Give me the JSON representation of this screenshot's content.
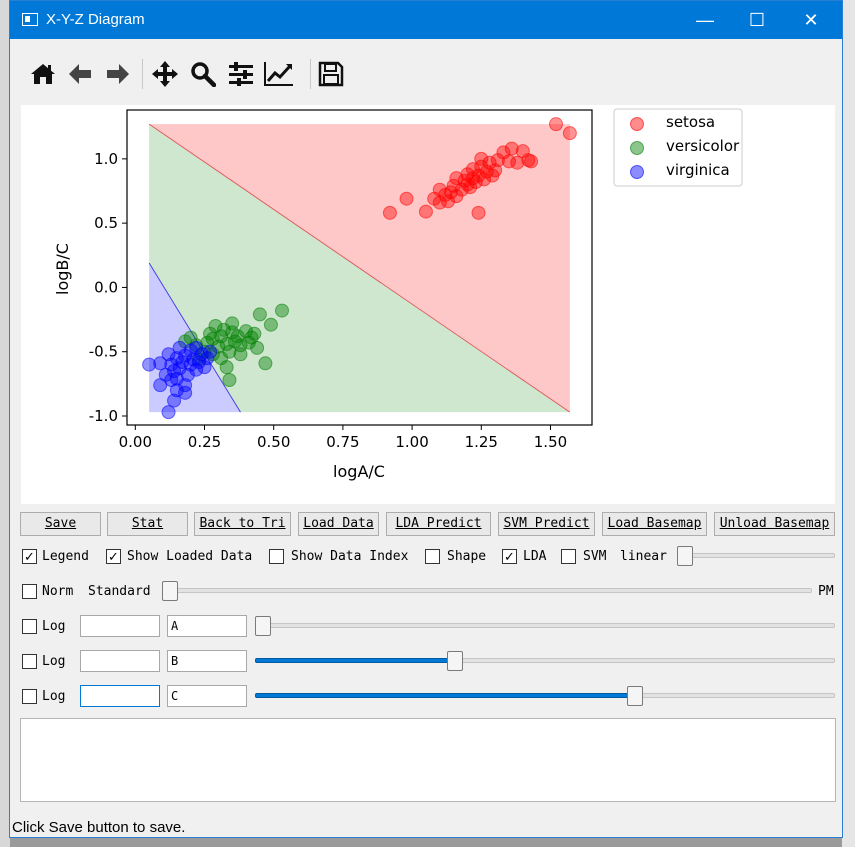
{
  "window": {
    "title": "X-Y-Z Diagram",
    "controls": [
      "—",
      "☐",
      "✕"
    ]
  },
  "toolbar": {
    "tools": [
      "home-icon",
      "back-arrow-icon",
      "forward-arrow-icon",
      "pan-icon",
      "zoom-icon",
      "configure-subplots-icon",
      "edit-axis-icon",
      "save-figure-icon"
    ]
  },
  "chart_data": {
    "type": "scatter",
    "xlabel": "logA/C",
    "ylabel": "logB/C",
    "xlim": [
      -0.03,
      1.65
    ],
    "ylim": [
      -1.07,
      1.38
    ],
    "xticks": [
      "0.00",
      "0.25",
      "0.50",
      "0.75",
      "1.00",
      "1.25",
      "1.50"
    ],
    "xtick_values": [
      0,
      0.25,
      0.5,
      0.75,
      1.0,
      1.25,
      1.5
    ],
    "yticks": [
      "-1.0",
      "-0.5",
      "0.0",
      "0.5",
      "1.0"
    ],
    "ytick_values": [
      -1.0,
      -0.5,
      0.0,
      0.5,
      1.0
    ],
    "legend_placement": "outside-right-top",
    "regions": [
      {
        "name": "setosa",
        "color": "#ffc8c8",
        "polygon": [
          [
            0.05,
            1.27
          ],
          [
            1.57,
            1.27
          ],
          [
            1.57,
            -0.97
          ]
        ]
      },
      {
        "name": "versicolor",
        "color": "#cfe6cf",
        "polygon": [
          [
            0.05,
            1.27
          ],
          [
            1.57,
            -0.97
          ],
          [
            0.38,
            -0.97
          ],
          [
            0.05,
            0.19
          ]
        ]
      },
      {
        "name": "virginica",
        "color": "#cccbff",
        "polygon": [
          [
            0.05,
            0.19
          ],
          [
            0.38,
            -0.97
          ],
          [
            0.05,
            -0.97
          ]
        ]
      }
    ],
    "boundaries": [
      {
        "color": "#e05555",
        "points": [
          [
            0.05,
            1.27
          ],
          [
            1.57,
            -0.97
          ]
        ]
      },
      {
        "color": "#3a3ae0",
        "points": [
          [
            0.05,
            0.19
          ],
          [
            0.38,
            -0.97
          ]
        ]
      }
    ],
    "series": [
      {
        "name": "setosa",
        "color": "#ff0000",
        "points": [
          [
            0.92,
            0.58
          ],
          [
            0.98,
            0.69
          ],
          [
            1.05,
            0.59
          ],
          [
            1.08,
            0.69
          ],
          [
            1.1,
            0.66
          ],
          [
            1.12,
            0.72
          ],
          [
            1.1,
            0.76
          ],
          [
            1.13,
            0.67
          ],
          [
            1.14,
            0.74
          ],
          [
            1.15,
            0.79
          ],
          [
            1.16,
            0.71
          ],
          [
            1.16,
            0.85
          ],
          [
            1.18,
            0.76
          ],
          [
            1.19,
            0.83
          ],
          [
            1.2,
            0.8
          ],
          [
            1.2,
            0.88
          ],
          [
            1.21,
            0.78
          ],
          [
            1.22,
            0.85
          ],
          [
            1.22,
            0.92
          ],
          [
            1.23,
            0.82
          ],
          [
            1.24,
            0.87
          ],
          [
            1.24,
            0.58
          ],
          [
            1.25,
            0.94
          ],
          [
            1.25,
            1.0
          ],
          [
            1.26,
            0.84
          ],
          [
            1.27,
            0.9
          ],
          [
            1.28,
            0.97
          ],
          [
            1.29,
            0.87
          ],
          [
            1.3,
            0.91
          ],
          [
            1.31,
            0.99
          ],
          [
            1.33,
            1.05
          ],
          [
            1.35,
            0.98
          ],
          [
            1.36,
            1.08
          ],
          [
            1.38,
            0.97
          ],
          [
            1.4,
            1.06
          ],
          [
            1.42,
            0.99
          ],
          [
            1.43,
            0.98
          ],
          [
            1.52,
            1.27
          ],
          [
            1.57,
            1.2
          ]
        ]
      },
      {
        "name": "versicolor",
        "color": "#008000",
        "points": [
          [
            0.18,
            -0.42
          ],
          [
            0.2,
            -0.39
          ],
          [
            0.22,
            -0.45
          ],
          [
            0.23,
            -0.56
          ],
          [
            0.25,
            -0.5
          ],
          [
            0.26,
            -0.43
          ],
          [
            0.27,
            -0.36
          ],
          [
            0.28,
            -0.52
          ],
          [
            0.28,
            -0.4
          ],
          [
            0.29,
            -0.3
          ],
          [
            0.3,
            -0.46
          ],
          [
            0.31,
            -0.38
          ],
          [
            0.31,
            -0.55
          ],
          [
            0.32,
            -0.33
          ],
          [
            0.33,
            -0.44
          ],
          [
            0.33,
            -0.62
          ],
          [
            0.34,
            -0.5
          ],
          [
            0.35,
            -0.35
          ],
          [
            0.35,
            -0.28
          ],
          [
            0.36,
            -0.42
          ],
          [
            0.37,
            -0.38
          ],
          [
            0.38,
            -0.52
          ],
          [
            0.38,
            -0.45
          ],
          [
            0.4,
            -0.34
          ],
          [
            0.41,
            -0.43
          ],
          [
            0.42,
            -0.39
          ],
          [
            0.43,
            -0.36
          ],
          [
            0.44,
            -0.47
          ],
          [
            0.45,
            -0.21
          ],
          [
            0.47,
            -0.59
          ],
          [
            0.49,
            -0.29
          ],
          [
            0.53,
            -0.18
          ],
          [
            0.34,
            -0.72
          ]
        ]
      },
      {
        "name": "virginica",
        "color": "#0000ff",
        "points": [
          [
            0.05,
            -0.6
          ],
          [
            0.09,
            -0.59
          ],
          [
            0.09,
            -0.76
          ],
          [
            0.11,
            -0.68
          ],
          [
            0.12,
            -0.52
          ],
          [
            0.12,
            -0.97
          ],
          [
            0.13,
            -0.6
          ],
          [
            0.13,
            -0.72
          ],
          [
            0.14,
            -0.88
          ],
          [
            0.14,
            -0.65
          ],
          [
            0.15,
            -0.55
          ],
          [
            0.15,
            -0.8
          ],
          [
            0.16,
            -0.47
          ],
          [
            0.16,
            -0.63
          ],
          [
            0.17,
            -0.58
          ],
          [
            0.18,
            -0.76
          ],
          [
            0.18,
            -0.53
          ],
          [
            0.19,
            -0.68
          ],
          [
            0.2,
            -0.6
          ],
          [
            0.2,
            -0.49
          ],
          [
            0.21,
            -0.56
          ],
          [
            0.22,
            -0.64
          ],
          [
            0.22,
            -0.47
          ],
          [
            0.23,
            -0.58
          ],
          [
            0.24,
            -0.52
          ],
          [
            0.25,
            -0.62
          ],
          [
            0.26,
            -0.55
          ],
          [
            0.27,
            -0.5
          ],
          [
            0.18,
            -0.82
          ],
          [
            0.15,
            -0.71
          ]
        ]
      }
    ]
  },
  "buttons": [
    "Save",
    "Stat",
    "Back to Tri",
    "Load Data",
    "LDA Predict",
    "SVM Predict",
    "Load Basemap",
    "Unload Basemap"
  ],
  "options": {
    "legend": {
      "label": "Legend",
      "checked": "✓"
    },
    "show_loaded": {
      "label": "Show Loaded Data",
      "checked": "✓"
    },
    "show_index": {
      "label": "Show Data Index",
      "checked": ""
    },
    "shape": {
      "label": "Shape",
      "checked": ""
    },
    "lda": {
      "label": "LDA",
      "checked": "✓"
    },
    "svm": {
      "label": "SVM",
      "checked": ""
    },
    "kernel": "linear"
  },
  "norm": {
    "label": "Norm",
    "checked": "",
    "mode": "Standard",
    "end_label": "PM",
    "level": 0.0
  },
  "log_rows": [
    {
      "label": "Log",
      "checked": "",
      "value": "",
      "name": "A",
      "level": 0.0
    },
    {
      "label": "Log",
      "checked": "",
      "value": "",
      "name": "B",
      "level": 0.34
    },
    {
      "label": "Log",
      "checked": "",
      "value": "",
      "name": "C",
      "level": 0.66
    }
  ],
  "status": "Click Save button to save."
}
